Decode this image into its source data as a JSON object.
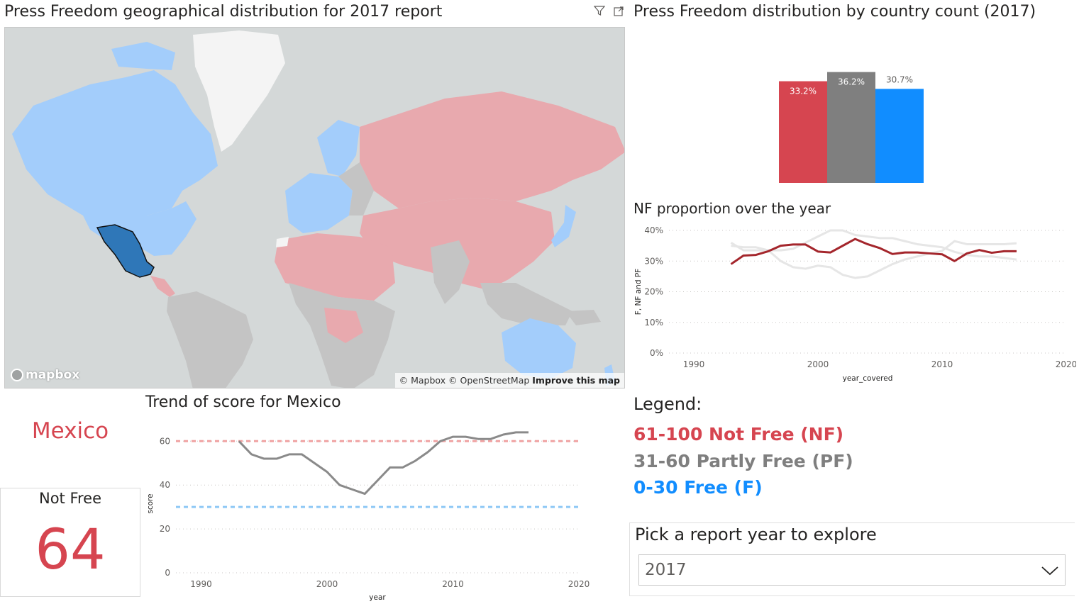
{
  "map_panel": {
    "title": "Press Freedom geographical distribution for 2017 report",
    "attribution_prefix": "© Mapbox © OpenStreetMap",
    "attribution_link": "Improve this map",
    "logo_text": "mapbox",
    "highlighted_country": "Mexico",
    "colors": {
      "not_free": "#e8a9ae",
      "partly_free": "#c4c4c4",
      "free": "#a3cdfb",
      "highlight": "#2f77b8",
      "ocean": "#d4d8d8"
    },
    "filter_icon": "filter-icon",
    "focus_icon": "focus-mode-icon"
  },
  "bar_panel": {
    "title": "Press Freedom distribution by country count (2017)"
  },
  "line_panel": {
    "title": "NF proportion over the year"
  },
  "trend_panel": {
    "title": "Trend of score for Mexico"
  },
  "country_card": {
    "country": "Mexico",
    "status_label": "Not Free",
    "score": "64"
  },
  "legend": {
    "title": "Legend:",
    "items": [
      {
        "label": "61-100 Not Free (NF)",
        "color": "#d64550"
      },
      {
        "label": "31-60 Partly Free (PF)",
        "color": "#7f7f7f"
      },
      {
        "label": "0-30 Free (F)",
        "color": "#118dff"
      }
    ]
  },
  "year_slicer": {
    "title": "Pick a report year to explore",
    "selected": "2017",
    "chevron_icon": "chevron-down-icon"
  },
  "chart_data": [
    {
      "id": "distribution",
      "type": "bar",
      "title": "Press Freedom distribution by country count (2017)",
      "categories": [
        "NF",
        "PF",
        "F"
      ],
      "values": [
        33.2,
        36.2,
        30.7
      ],
      "data_labels": [
        "33.2%",
        "36.2%",
        "30.7%"
      ],
      "colors": [
        "#d64550",
        "#7f7f7f",
        "#118dff"
      ],
      "ylim": [
        0,
        40
      ]
    },
    {
      "id": "nf_proportion",
      "type": "line",
      "title": "NF proportion over the year",
      "xlabel": "year_covered",
      "ylabel": "F, NF and PF",
      "xlim": [
        1988,
        2020
      ],
      "ylim": [
        0,
        40
      ],
      "x_ticks": [
        "1990",
        "2000",
        "2010",
        "2020"
      ],
      "y_ticks": [
        "0%",
        "10%",
        "20%",
        "30%",
        "40%"
      ],
      "x": [
        1993,
        1994,
        1995,
        1996,
        1997,
        1998,
        1999,
        2000,
        2001,
        2002,
        2003,
        2004,
        2005,
        2006,
        2007,
        2008,
        2009,
        2010,
        2011,
        2012,
        2013,
        2014,
        2015,
        2016
      ],
      "series": [
        {
          "values": [
            29.0,
            31.8,
            32.0,
            33.2,
            35.0,
            35.4,
            35.4,
            33.1,
            32.8,
            35.0,
            37.2,
            35.5,
            34.2,
            32.3,
            32.8,
            32.8,
            32.5,
            32.2,
            30.0,
            32.5,
            33.6,
            32.7,
            33.2,
            33.2
          ],
          "color": "#a4262c",
          "width": 3
        },
        {
          "values": [
            36.0,
            33.5,
            33.5,
            33.5,
            33.5,
            34.0,
            36.0,
            38.0,
            40.0,
            40.0,
            38.5,
            38.0,
            37.5,
            37.5,
            36.5,
            35.5,
            35.0,
            34.5,
            33.0,
            32.0,
            31.5,
            31.5,
            31.0,
            30.5
          ],
          "color": "#e6e6e6",
          "width": 3
        },
        {
          "values": [
            35.0,
            34.5,
            34.5,
            33.5,
            30.0,
            28.0,
            27.5,
            28.5,
            28.0,
            25.5,
            24.5,
            25.0,
            27.0,
            29.0,
            30.5,
            31.5,
            32.5,
            33.3,
            36.5,
            35.5,
            35.5,
            35.5,
            35.5,
            35.8
          ],
          "color": "#e6e6e6",
          "width": 3
        }
      ]
    },
    {
      "id": "mexico_trend",
      "type": "line",
      "title": "Trend of score for Mexico",
      "xlabel": "year",
      "ylabel": "score",
      "xlim": [
        1988,
        2020
      ],
      "ylim": [
        0,
        63
      ],
      "x_ticks": [
        "1990",
        "2000",
        "2010",
        "2020"
      ],
      "y_ticks": [
        "0",
        "20",
        "40",
        "60"
      ],
      "x": [
        1993,
        1994,
        1995,
        1996,
        1997,
        1998,
        1999,
        2000,
        2001,
        2002,
        2003,
        2004,
        2005,
        2006,
        2007,
        2008,
        2009,
        2010,
        2011,
        2012,
        2013,
        2014,
        2015,
        2016
      ],
      "series": [
        {
          "values": [
            60,
            54,
            52,
            52,
            54,
            54,
            50,
            46,
            40,
            38,
            36,
            42,
            48,
            48,
            51,
            55,
            60,
            62,
            62,
            61,
            61,
            63,
            64,
            64
          ],
          "color": "#8a8a8a",
          "width": 3
        }
      ],
      "reference_lines": [
        {
          "value": 60,
          "color": "#f0a3a3"
        },
        {
          "value": 30,
          "color": "#8ec8f5"
        }
      ]
    }
  ]
}
